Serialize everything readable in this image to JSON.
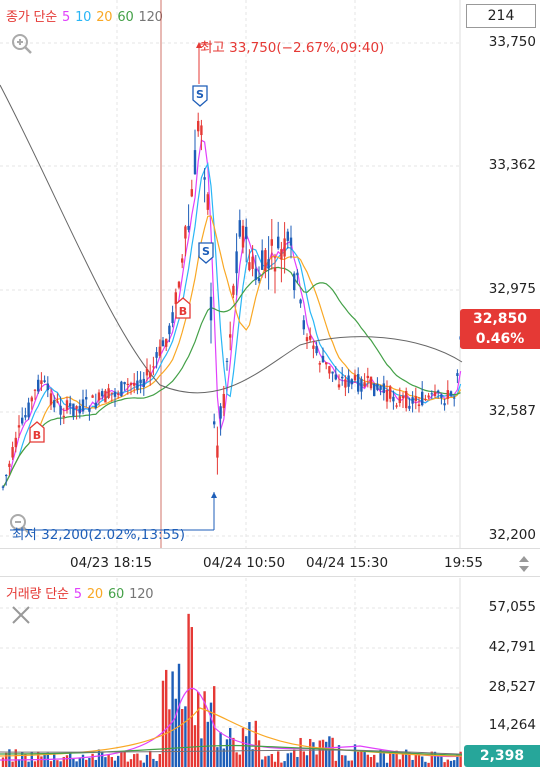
{
  "price_legend": {
    "label": "종가 단순",
    "periods": [
      {
        "text": "5",
        "color": "#e040fb"
      },
      {
        "text": "10",
        "color": "#29b6f6"
      },
      {
        "text": "20",
        "color": "#f9a825"
      },
      {
        "text": "60",
        "color": "#43a047"
      },
      {
        "text": "120",
        "color": "#757575"
      }
    ]
  },
  "volume_legend": {
    "label": "거래량 단순",
    "periods": [
      {
        "text": "5",
        "color": "#e040fb"
      },
      {
        "text": "20",
        "color": "#f9a825"
      },
      {
        "text": "60",
        "color": "#43a047"
      },
      {
        "text": "120",
        "color": "#757575"
      }
    ]
  },
  "count_box": "214",
  "price_axis": [
    "33,750",
    "33,362",
    "32,975",
    "32,587",
    "32,200"
  ],
  "volume_axis": [
    "57,055",
    "42,791",
    "28,527",
    "14,264"
  ],
  "time_axis": [
    "04/23 18:15",
    "04/24 10:50",
    "04/24 15:30",
    "19:55"
  ],
  "current_price": {
    "value": "32,850",
    "change": "0.46%"
  },
  "current_volume": "2,398",
  "annotations": {
    "high": "최고 33,750(−2.67%,09:40)",
    "low": "최저 32,200(2.02%,13:55)"
  },
  "markers": [
    {
      "type": "S",
      "label": "S",
      "kind": "sell"
    },
    {
      "type": "S",
      "label": "S",
      "kind": "sell"
    },
    {
      "type": "B",
      "label": "B",
      "kind": "buy"
    },
    {
      "type": "B",
      "label": "B",
      "kind": "buy"
    }
  ],
  "icons": {
    "zoom_in": "zoom-in-icon",
    "zoom_out": "zoom-out-icon",
    "close": "close-icon",
    "sort": "sort-icon"
  },
  "colors": {
    "up": "#e53935",
    "down": "#1e5eb8",
    "volume_tag": "#26a69a",
    "crosshair": "#c0392b"
  }
}
